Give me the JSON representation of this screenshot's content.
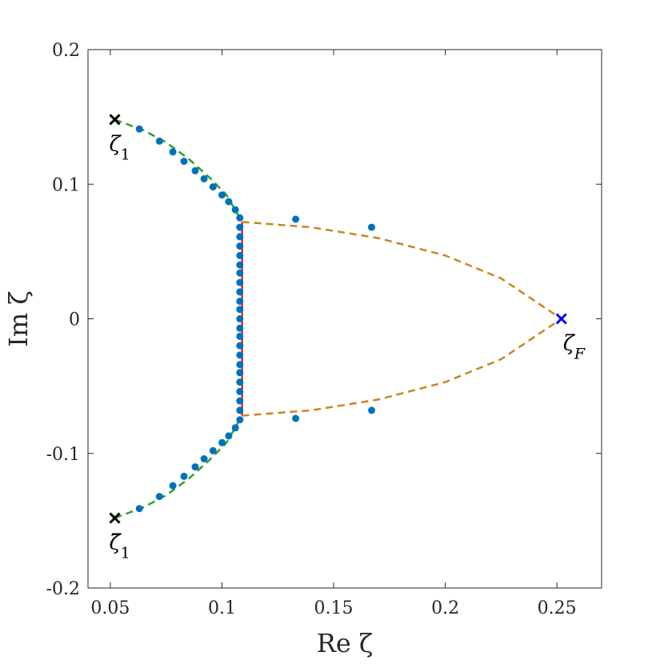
{
  "chart_data": {
    "type": "scatter",
    "xlabel": "Re ζ",
    "ylabel": "Im ζ",
    "xlim": [
      0.04,
      0.27
    ],
    "ylim": [
      -0.2,
      0.2
    ],
    "x_ticks": [
      {
        "value": 0.05,
        "label": "0.05"
      },
      {
        "value": 0.1,
        "label": "0.1"
      },
      {
        "value": 0.15,
        "label": "0.15"
      },
      {
        "value": 0.2,
        "label": "0.2"
      },
      {
        "value": 0.25,
        "label": "0.25"
      }
    ],
    "y_ticks": [
      {
        "value": 0.2,
        "label": "0.2"
      },
      {
        "value": 0.1,
        "label": "0.1"
      },
      {
        "value": 0,
        "label": "0"
      },
      {
        "value": -0.1,
        "label": "-0.1"
      },
      {
        "value": -0.2,
        "label": "-0.2"
      }
    ],
    "grid": false,
    "colors": {
      "points": "#0072BD",
      "green_curve": "#2ca02c",
      "orange_curve": "#c9861a",
      "red_curve": "#d62728",
      "zeta1_marker": "#000000",
      "zetaF_marker": "#0000ff"
    },
    "points": [
      {
        "x": 0.063,
        "y": 0.141
      },
      {
        "x": 0.072,
        "y": 0.132
      },
      {
        "x": 0.078,
        "y": 0.124
      },
      {
        "x": 0.083,
        "y": 0.117
      },
      {
        "x": 0.088,
        "y": 0.11
      },
      {
        "x": 0.092,
        "y": 0.104
      },
      {
        "x": 0.096,
        "y": 0.098
      },
      {
        "x": 0.1,
        "y": 0.092
      },
      {
        "x": 0.103,
        "y": 0.087
      },
      {
        "x": 0.106,
        "y": 0.081
      },
      {
        "x": 0.108,
        "y": 0.075
      },
      {
        "x": 0.108,
        "y": 0.068
      },
      {
        "x": 0.108,
        "y": 0.061
      },
      {
        "x": 0.108,
        "y": 0.054
      },
      {
        "x": 0.108,
        "y": 0.047
      },
      {
        "x": 0.108,
        "y": 0.04
      },
      {
        "x": 0.108,
        "y": 0.034
      },
      {
        "x": 0.108,
        "y": 0.027
      },
      {
        "x": 0.108,
        "y": 0.02
      },
      {
        "x": 0.108,
        "y": 0.013
      },
      {
        "x": 0.108,
        "y": 0.007
      },
      {
        "x": 0.108,
        "y": 0.0
      },
      {
        "x": 0.108,
        "y": -0.007
      },
      {
        "x": 0.108,
        "y": -0.013
      },
      {
        "x": 0.108,
        "y": -0.02
      },
      {
        "x": 0.108,
        "y": -0.027
      },
      {
        "x": 0.108,
        "y": -0.034
      },
      {
        "x": 0.108,
        "y": -0.04
      },
      {
        "x": 0.108,
        "y": -0.047
      },
      {
        "x": 0.108,
        "y": -0.054
      },
      {
        "x": 0.108,
        "y": -0.061
      },
      {
        "x": 0.108,
        "y": -0.068
      },
      {
        "x": 0.108,
        "y": -0.075
      },
      {
        "x": 0.106,
        "y": -0.081
      },
      {
        "x": 0.103,
        "y": -0.087
      },
      {
        "x": 0.1,
        "y": -0.092
      },
      {
        "x": 0.096,
        "y": -0.098
      },
      {
        "x": 0.092,
        "y": -0.104
      },
      {
        "x": 0.088,
        "y": -0.11
      },
      {
        "x": 0.083,
        "y": -0.117
      },
      {
        "x": 0.078,
        "y": -0.124
      },
      {
        "x": 0.072,
        "y": -0.132
      },
      {
        "x": 0.063,
        "y": -0.141
      },
      {
        "x": 0.133,
        "y": 0.074
      },
      {
        "x": 0.167,
        "y": 0.068
      },
      {
        "x": 0.133,
        "y": -0.074
      },
      {
        "x": 0.167,
        "y": -0.068
      }
    ],
    "curves": [
      {
        "id": "green-upper",
        "style": "dashed",
        "color_key": "green_curve",
        "points": [
          [
            0.052,
            0.148
          ],
          [
            0.065,
            0.14
          ],
          [
            0.075,
            0.131
          ],
          [
            0.085,
            0.119
          ],
          [
            0.095,
            0.104
          ],
          [
            0.102,
            0.092
          ],
          [
            0.109,
            0.072
          ]
        ]
      },
      {
        "id": "green-lower",
        "style": "dashed",
        "color_key": "green_curve",
        "points": [
          [
            0.052,
            -0.148
          ],
          [
            0.065,
            -0.14
          ],
          [
            0.075,
            -0.131
          ],
          [
            0.085,
            -0.119
          ],
          [
            0.095,
            -0.104
          ],
          [
            0.102,
            -0.092
          ],
          [
            0.109,
            -0.072
          ]
        ]
      },
      {
        "id": "red-vertical",
        "style": "solid",
        "color_key": "red_curve",
        "points": [
          [
            0.109,
            0.072
          ],
          [
            0.109,
            -0.072
          ]
        ]
      },
      {
        "id": "orange-upper",
        "style": "dashed",
        "color_key": "orange_curve",
        "points": [
          [
            0.109,
            0.072
          ],
          [
            0.14,
            0.068
          ],
          [
            0.17,
            0.06
          ],
          [
            0.2,
            0.047
          ],
          [
            0.225,
            0.03
          ],
          [
            0.252,
            0.0
          ]
        ]
      },
      {
        "id": "orange-lower",
        "style": "dashed",
        "color_key": "orange_curve",
        "points": [
          [
            0.109,
            -0.072
          ],
          [
            0.14,
            -0.068
          ],
          [
            0.17,
            -0.06
          ],
          [
            0.2,
            -0.047
          ],
          [
            0.225,
            -0.03
          ],
          [
            0.252,
            0.0
          ]
        ]
      }
    ],
    "special_markers": [
      {
        "id": "zeta1",
        "label_base": "ζ",
        "label_sub": "1",
        "bar": false,
        "x": 0.052,
        "y": 0.148,
        "color_key": "zeta1_marker",
        "label_pos": "below"
      },
      {
        "id": "zeta1-bar",
        "label_base": "ζ̄",
        "label_sub": "1",
        "bar": true,
        "x": 0.052,
        "y": -0.148,
        "color_key": "zeta1_marker",
        "label_pos": "below"
      },
      {
        "id": "zetaF",
        "label_base": "ζ",
        "label_sub": "F",
        "bar": false,
        "x": 0.252,
        "y": 0.0,
        "color_key": "zetaF_marker",
        "label_pos": "below-right"
      }
    ]
  }
}
